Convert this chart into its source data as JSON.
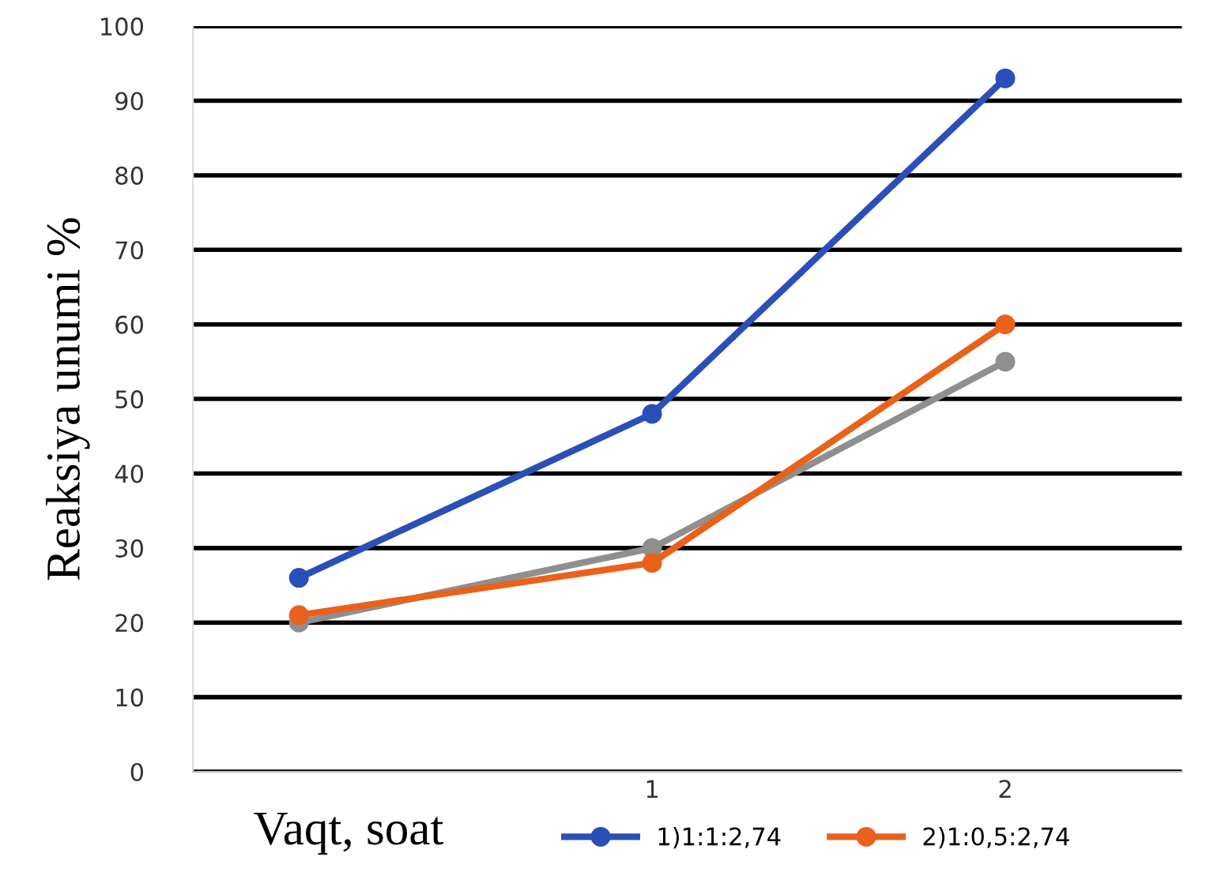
{
  "chart_data": {
    "type": "line",
    "xlabel": "Vaqt, soat",
    "ylabel": "Reaksiya unumi %",
    "categories": [
      null,
      "1",
      "2"
    ],
    "series": [
      {
        "name": "1)1:1:2,74",
        "color": "#2a4fb8",
        "values": [
          26,
          48,
          93
        ]
      },
      {
        "name": "2)1:0,5:2,74",
        "color": "#e8621c",
        "values": [
          21,
          28,
          60
        ]
      },
      {
        "color": "#8f8f8f",
        "values": [
          20,
          30,
          55
        ]
      }
    ],
    "ylim": [
      0,
      100
    ],
    "yticks": [
      0,
      10,
      20,
      30,
      40,
      50,
      60,
      70,
      80,
      90,
      100
    ],
    "grid": "y",
    "legend": "bottom",
    "marker": "circle",
    "line_style": "solid"
  }
}
